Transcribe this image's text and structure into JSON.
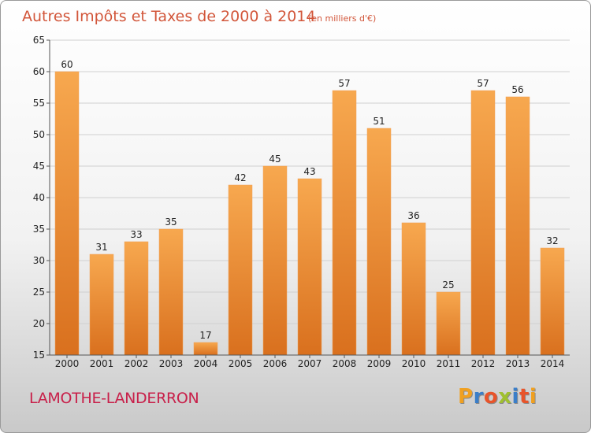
{
  "chart_data": {
    "type": "bar",
    "title": "Autres Impôts et Taxes de 2000 à 2014",
    "unit_note": "(en milliers d'€)",
    "categories": [
      "2000",
      "2001",
      "2002",
      "2003",
      "2004",
      "2005",
      "2006",
      "2007",
      "2008",
      "2009",
      "2010",
      "2011",
      "2012",
      "2013",
      "2014"
    ],
    "values": [
      60,
      31,
      33,
      35,
      17,
      42,
      45,
      43,
      57,
      51,
      36,
      25,
      57,
      56,
      32
    ],
    "ylim": [
      15,
      65
    ],
    "yticks": [
      15,
      20,
      25,
      30,
      35,
      40,
      45,
      50,
      55,
      60,
      65
    ],
    "grid": true,
    "xlabel": "",
    "ylabel": "",
    "colors": {
      "bar_top": "#f7a84f",
      "bar_bottom": "#d9701e",
      "title": "#d2563a"
    }
  },
  "footer": {
    "city": "LAMOTHE-LANDERRON",
    "logo": "Proxiti"
  },
  "logo_colors": [
    "#f0a020",
    "#3b7ec8",
    "#e8542a",
    "#a0c030",
    "#3b7ec8",
    "#e8542a",
    "#f0a020"
  ]
}
